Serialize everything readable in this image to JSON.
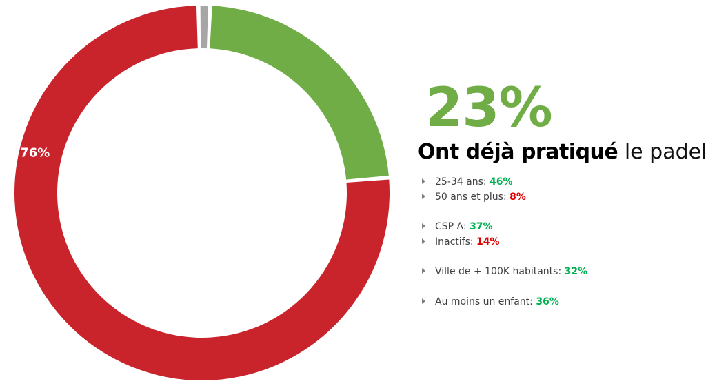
{
  "chart_data": {
    "type": "pie",
    "donut": true,
    "slices": [
      {
        "label": "23%",
        "value": 23,
        "color": "#70ad47",
        "show_label": false
      },
      {
        "label": "76%",
        "value": 76,
        "color": "#c9242c",
        "show_label": true
      },
      {
        "label": "1%",
        "value": 1,
        "color": "#a6a6a6",
        "show_label": false
      }
    ]
  },
  "headline": {
    "value": "23%",
    "caption_bold": "Ont déjà pratiqué",
    "caption_rest": "le padel"
  },
  "stats": [
    {
      "label": "25-34 ans: ",
      "value": "46%",
      "tone": "pos"
    },
    {
      "label": "50 ans et plus: ",
      "value": "8%",
      "tone": "neg"
    },
    {
      "label": "CSP A: ",
      "value": "37%",
      "tone": "pos"
    },
    {
      "label": "Inactifs: ",
      "value": "14%",
      "tone": "neg"
    },
    {
      "label": "Ville de + 100K habitants: ",
      "value": "32%",
      "tone": "pos"
    },
    {
      "label": "Au moins un enfant: ",
      "value": "36%",
      "tone": "pos"
    }
  ],
  "colors": {
    "accent_green": "#70ad47",
    "positive": "#00b050",
    "negative": "#e00000"
  }
}
